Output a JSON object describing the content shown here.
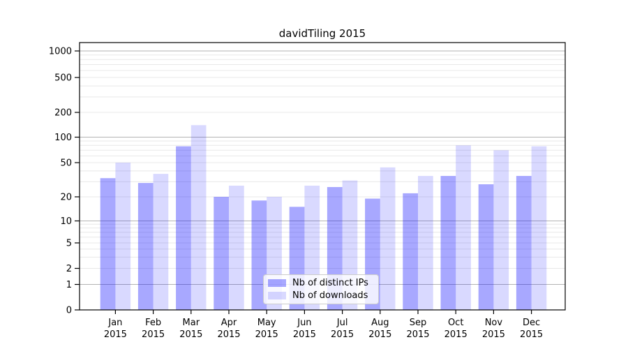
{
  "chart_data": {
    "type": "bar",
    "title": "davidTiling 2015",
    "categories": [
      "Jan",
      "Feb",
      "Mar",
      "Apr",
      "May",
      "Jun",
      "Jul",
      "Aug",
      "Sep",
      "Oct",
      "Nov",
      "Dec"
    ],
    "category_year_label": "2015",
    "series": [
      {
        "name": "Nb of distinct IPs",
        "color": "rgba(0,0,255,0.34)",
        "values": [
          33,
          29,
          78,
          20,
          18,
          15,
          26,
          19,
          22,
          35,
          28,
          35
        ]
      },
      {
        "name": "Nb of downloads",
        "color": "rgba(0,0,255,0.15)",
        "values": [
          50,
          37,
          140,
          27,
          20,
          27,
          31,
          44,
          35,
          80,
          70,
          78
        ]
      }
    ],
    "y_axis": {
      "scale": "symlog",
      "tick_values": [
        0,
        1,
        2,
        5,
        10,
        20,
        50,
        100,
        200,
        500,
        1000
      ],
      "major_grid_values": [
        1,
        10,
        100,
        1000
      ],
      "minor_grid_values": [
        2,
        3,
        4,
        5,
        6,
        7,
        8,
        9,
        20,
        30,
        40,
        50,
        60,
        70,
        80,
        90,
        200,
        300,
        400,
        500,
        600,
        700,
        800,
        900
      ],
      "range": [
        0,
        1000
      ]
    },
    "grid": true,
    "legend_position": "lower center",
    "colors": {
      "major_grid": "#b3b3b3",
      "minor_grid": "#e8e8e8",
      "axis": "#000000",
      "text": "#000000",
      "background": "#ffffff"
    }
  }
}
